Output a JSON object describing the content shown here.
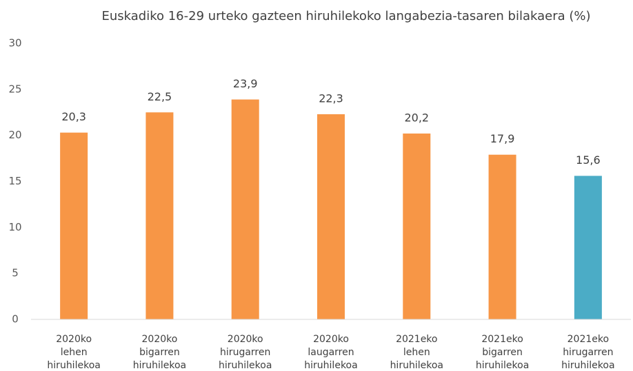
{
  "chart_data": {
    "type": "bar",
    "title": "Euskadiko 16-29 urteko gazteen hiruhilekoko langabezia-tasaren bilakaera (%)",
    "categories": [
      "2020ko lehen hiruhilekoa",
      "2020ko bigarren hiruhilekoa",
      "2020ko hirugarren hiruhilekoa",
      "2020ko laugarren hiruhilekoa",
      "2021eko lehen hiruhilekoa",
      "2021eko bigarren hiruhilekoa",
      "2021eko hirugarren hiruhilekoa"
    ],
    "values": [
      20.3,
      22.5,
      23.9,
      22.3,
      20.2,
      17.9,
      15.6
    ],
    "value_labels": [
      "20,3",
      "22,5",
      "23,9",
      "22,3",
      "20,2",
      "17,9",
      "15,6"
    ],
    "colors": [
      "#f79646",
      "#f79646",
      "#f79646",
      "#f79646",
      "#f79646",
      "#f79646",
      "#4bacc6"
    ],
    "ylim": [
      0,
      30
    ],
    "yticks": [
      0,
      5,
      10,
      15,
      20,
      25,
      30
    ],
    "grid": false
  }
}
